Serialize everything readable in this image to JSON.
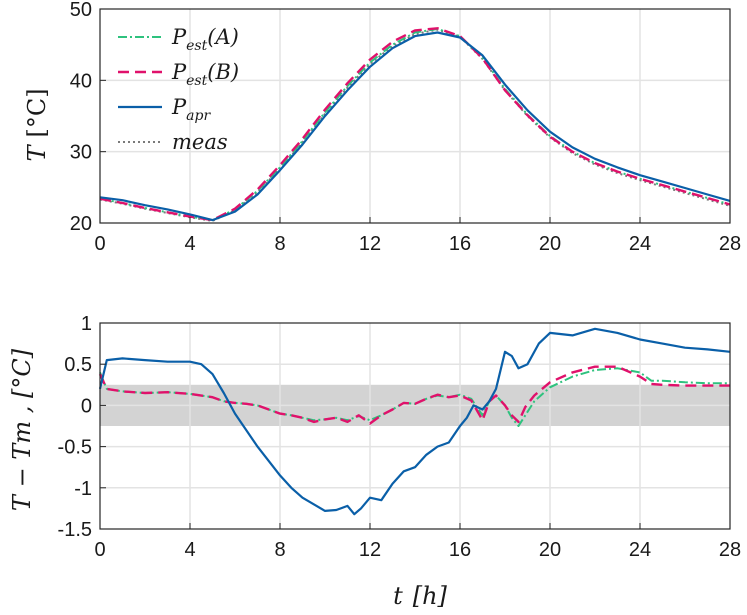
{
  "colors": {
    "pest_a": "#2ec27e",
    "pest_b": "#e0116b",
    "papr": "#0a5fa8",
    "meas": "#7a7a7a",
    "band": "#d3d3d3",
    "grid": "#e3e3e3",
    "axis": "#262626"
  },
  "chart_data": [
    {
      "type": "line",
      "ylabel_main": "T",
      "ylabel_unit": "[°C]",
      "xlim": [
        0,
        28
      ],
      "ylim": [
        20,
        50
      ],
      "xticks": [
        0,
        4,
        8,
        12,
        16,
        20,
        24,
        28
      ],
      "yticks": [
        20,
        30,
        40,
        50
      ],
      "grid": true,
      "legend_placement": "top-left",
      "legend": [
        {
          "key": "pest_a",
          "base": "P",
          "sub": "est",
          "suffix": "(A)"
        },
        {
          "key": "pest_b",
          "base": "P",
          "sub": "est",
          "suffix": "(B)"
        },
        {
          "key": "papr",
          "base": "P",
          "sub": "apr",
          "suffix": ""
        },
        {
          "key": "meas",
          "base": "meas",
          "sub": "",
          "suffix": ""
        }
      ],
      "series": [
        {
          "key": "meas",
          "x": [
            0,
            1,
            2,
            3,
            4,
            5,
            6,
            7,
            8,
            9,
            10,
            11,
            12,
            13,
            14,
            15,
            16,
            17,
            18,
            19,
            20,
            21,
            22,
            23,
            24,
            25,
            26,
            27,
            28
          ],
          "values": [
            23.3,
            22.7,
            22.0,
            21.4,
            20.8,
            20.3,
            21.8,
            24.3,
            27.6,
            31.3,
            35.3,
            39.0,
            42.3,
            44.8,
            46.5,
            47.1,
            46.1,
            43.0,
            38.6,
            35.0,
            32.0,
            29.8,
            28.2,
            27.0,
            26.0,
            25.1,
            24.2,
            23.3,
            22.4
          ]
        },
        {
          "key": "pest_a",
          "x": [
            0,
            1,
            2,
            3,
            4,
            5,
            6,
            7,
            8,
            9,
            10,
            11,
            12,
            13,
            14,
            15,
            16,
            17,
            18,
            19,
            20,
            21,
            22,
            23,
            24,
            25,
            26,
            27,
            28
          ],
          "values": [
            23.4,
            22.8,
            22.1,
            21.5,
            20.9,
            20.4,
            21.9,
            24.5,
            27.8,
            31.5,
            35.5,
            39.2,
            42.5,
            45.0,
            46.7,
            47.2,
            46.2,
            43.2,
            38.8,
            35.2,
            32.2,
            30.0,
            28.4,
            27.2,
            26.2,
            25.3,
            24.4,
            23.5,
            22.6
          ]
        },
        {
          "key": "pest_b",
          "x": [
            0,
            1,
            2,
            3,
            4,
            5,
            6,
            7,
            8,
            9,
            10,
            11,
            12,
            13,
            14,
            15,
            16,
            17,
            18,
            19,
            20,
            21,
            22,
            23,
            24,
            25,
            26,
            27,
            28
          ],
          "values": [
            23.4,
            22.8,
            22.1,
            21.5,
            20.9,
            20.4,
            22.0,
            24.7,
            28.1,
            31.8,
            35.9,
            39.6,
            42.9,
            45.4,
            47.0,
            47.3,
            46.2,
            43.1,
            38.6,
            35.1,
            32.1,
            30.0,
            28.4,
            27.2,
            26.2,
            25.3,
            24.4,
            23.5,
            22.6
          ]
        },
        {
          "key": "papr",
          "x": [
            0,
            1,
            2,
            3,
            4,
            5,
            6,
            7,
            8,
            9,
            10,
            11,
            12,
            13,
            14,
            15,
            16,
            17,
            18,
            19,
            20,
            21,
            22,
            23,
            24,
            25,
            26,
            27,
            28
          ],
          "values": [
            23.6,
            23.2,
            22.5,
            21.9,
            21.2,
            20.4,
            21.6,
            24.0,
            27.4,
            31.0,
            35.0,
            38.6,
            41.9,
            44.5,
            46.2,
            46.7,
            46.0,
            43.5,
            39.4,
            35.8,
            32.8,
            30.6,
            29.0,
            27.8,
            26.7,
            25.8,
            24.9,
            24.0,
            23.1
          ]
        }
      ]
    },
    {
      "type": "line",
      "ylabel": "T − Tm ,  [°C]",
      "xlabel_main": "t",
      "xlabel_unit": "[h]",
      "xlim": [
        0,
        28
      ],
      "ylim": [
        -1.5,
        1
      ],
      "xticks": [
        0,
        4,
        8,
        12,
        16,
        20,
        24,
        28
      ],
      "yticks": [
        -1.5,
        -1,
        -0.5,
        0,
        0.5,
        1
      ],
      "ytick_labels": [
        "-1.5",
        "-1",
        "-0.5",
        "0",
        "0.5",
        "1"
      ],
      "grid": true,
      "band": [
        -0.25,
        0.25
      ],
      "series": [
        {
          "key": "pest_a",
          "x": [
            0,
            0.3,
            1,
            2,
            3,
            4,
            5,
            5.5,
            6,
            6.5,
            7,
            7.5,
            8,
            8.5,
            9,
            9.5,
            10,
            10.5,
            11,
            11.5,
            12,
            12.5,
            13,
            13.5,
            14,
            14.5,
            15,
            15.5,
            16,
            16.5,
            17,
            17.3,
            17.6,
            18,
            18.3,
            18.6,
            18.9,
            19.3,
            20,
            21,
            22,
            23,
            24,
            24.5,
            25,
            26,
            27,
            28
          ],
          "values": [
            0.4,
            0.2,
            0.17,
            0.15,
            0.16,
            0.14,
            0.1,
            0.05,
            0.03,
            0.02,
            0.0,
            -0.05,
            -0.1,
            -0.12,
            -0.15,
            -0.18,
            -0.17,
            -0.15,
            -0.18,
            -0.13,
            -0.18,
            -0.12,
            -0.05,
            0.03,
            0.02,
            0.08,
            0.12,
            0.1,
            0.13,
            0.08,
            -0.12,
            0.05,
            0.12,
            0.0,
            -0.15,
            -0.25,
            -0.12,
            0.05,
            0.22,
            0.35,
            0.43,
            0.45,
            0.4,
            0.3,
            0.3,
            0.28,
            0.27,
            0.27
          ]
        },
        {
          "key": "pest_b",
          "x": [
            0,
            0.3,
            1,
            2,
            3,
            4,
            5,
            5.5,
            6,
            6.5,
            7,
            7.5,
            8,
            8.5,
            9,
            9.5,
            10,
            10.5,
            11,
            11.5,
            12,
            12.5,
            13,
            13.5,
            14,
            14.5,
            15,
            15.5,
            16,
            16.5,
            17,
            17.3,
            17.6,
            18,
            18.3,
            18.6,
            18.9,
            19.3,
            20,
            21,
            22,
            23,
            24,
            24.5,
            25,
            26,
            27,
            28
          ],
          "values": [
            0.38,
            0.2,
            0.17,
            0.15,
            0.16,
            0.14,
            0.1,
            0.05,
            0.03,
            0.02,
            0.0,
            -0.05,
            -0.1,
            -0.12,
            -0.15,
            -0.2,
            -0.17,
            -0.15,
            -0.2,
            -0.12,
            -0.22,
            -0.12,
            -0.05,
            0.03,
            0.02,
            0.08,
            0.13,
            0.1,
            0.12,
            0.06,
            -0.18,
            0.05,
            0.12,
            0.0,
            -0.12,
            -0.2,
            -0.02,
            0.12,
            0.28,
            0.4,
            0.47,
            0.47,
            0.35,
            0.26,
            0.25,
            0.24,
            0.24,
            0.24
          ]
        },
        {
          "key": "papr",
          "x": [
            0,
            0.3,
            1,
            2,
            3,
            4,
            4.5,
            5,
            5.5,
            6,
            7,
            8,
            8.5,
            9,
            9.5,
            10,
            10.5,
            11,
            11.3,
            11.6,
            12,
            12.5,
            13,
            13.5,
            14,
            14.5,
            15,
            15.5,
            16,
            16.3,
            16.6,
            17,
            17.3,
            17.6,
            18,
            18.3,
            18.6,
            19,
            19.5,
            20,
            21,
            22,
            23,
            24,
            25,
            26,
            27,
            28
          ],
          "values": [
            0.2,
            0.55,
            0.57,
            0.55,
            0.53,
            0.53,
            0.5,
            0.38,
            0.15,
            -0.1,
            -0.5,
            -0.85,
            -1.0,
            -1.12,
            -1.2,
            -1.28,
            -1.27,
            -1.22,
            -1.32,
            -1.25,
            -1.12,
            -1.15,
            -0.95,
            -0.8,
            -0.75,
            -0.6,
            -0.5,
            -0.45,
            -0.25,
            -0.15,
            0.0,
            -0.05,
            0.05,
            0.2,
            0.65,
            0.6,
            0.45,
            0.5,
            0.75,
            0.88,
            0.85,
            0.93,
            0.88,
            0.8,
            0.75,
            0.7,
            0.68,
            0.65
          ]
        }
      ]
    }
  ]
}
